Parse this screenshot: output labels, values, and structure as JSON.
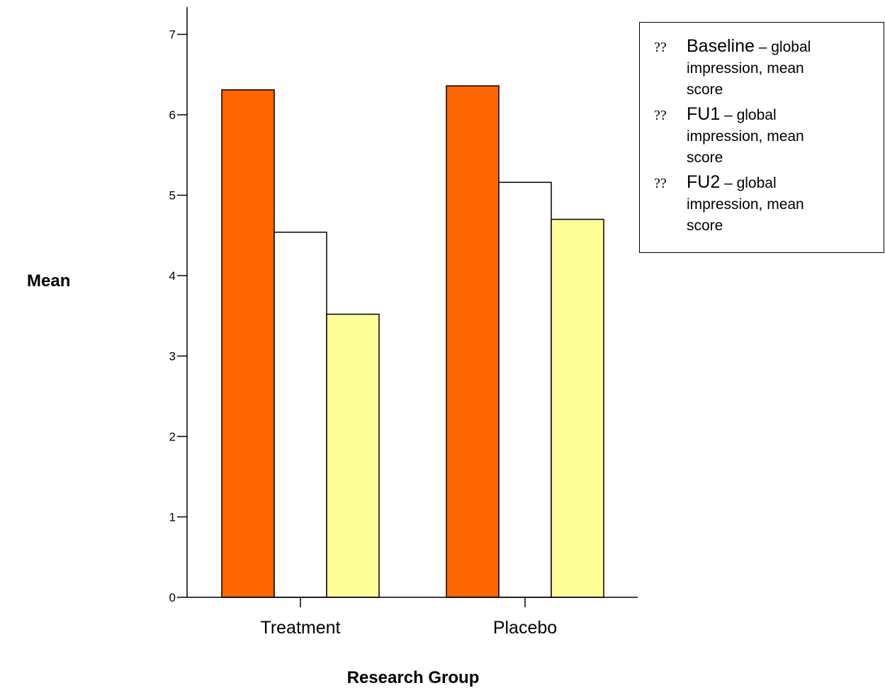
{
  "chart_data": {
    "type": "bar",
    "categories": [
      "Treatment",
      "Placebo"
    ],
    "series": [
      {
        "name": "Baseline – global impression, mean score",
        "values": [
          6.31,
          6.36
        ],
        "color": "#ff6600"
      },
      {
        "name": "FU1 – global impression, mean score",
        "values": [
          4.54,
          5.16
        ],
        "color": "#ffffff"
      },
      {
        "name": "FU2 – global impression, mean score",
        "values": [
          3.52,
          4.7
        ],
        "color": "#ffff99"
      }
    ],
    "xlabel": "Research Group",
    "ylabel": "Mean",
    "ylim": [
      0,
      7
    ],
    "yticks": [
      0,
      1,
      2,
      3,
      4,
      5,
      6,
      7
    ],
    "grid": false,
    "legend_position": "top-right"
  },
  "legend": {
    "marker": "??",
    "items": [
      {
        "name": "Baseline",
        "suffix": " – global impression, mean score"
      },
      {
        "name": "FU1",
        "suffix": " – global impression, mean score"
      },
      {
        "name": "FU2",
        "suffix": " – global impression, mean score"
      }
    ]
  }
}
